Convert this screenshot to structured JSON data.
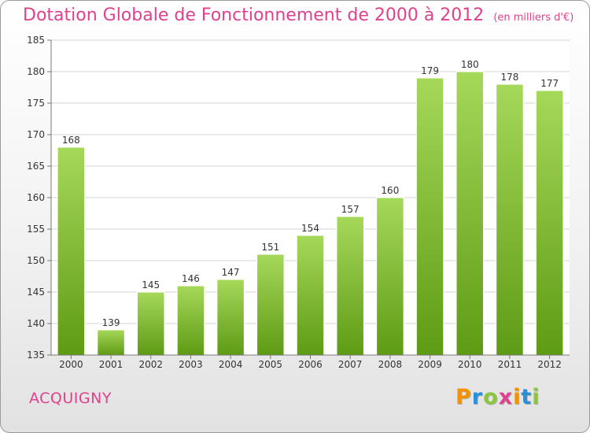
{
  "header": {
    "title": "Dotation Globale de Fonctionnement de 2000 à 2012",
    "unit": "(en milliers d'€)"
  },
  "commune": "ACQUIGNY",
  "logo": {
    "letters": [
      "P",
      "r",
      "o",
      "x",
      "i",
      "t",
      "i"
    ],
    "colors": [
      "#f39200",
      "#2a8fd6",
      "#8cc63f",
      "#e0418c",
      "#f39200",
      "#2a8fd6",
      "#8cc63f"
    ]
  },
  "colors": {
    "bar_light": "#a6d85a",
    "bar_dark": "#5e9b14",
    "accent": "#e0418c"
  },
  "chart_data": {
    "type": "bar",
    "categories": [
      "2000",
      "2001",
      "2002",
      "2003",
      "2004",
      "2005",
      "2006",
      "2007",
      "2008",
      "2009",
      "2010",
      "2011",
      "2012"
    ],
    "values": [
      168,
      139,
      145,
      146,
      147,
      151,
      154,
      157,
      160,
      179,
      180,
      178,
      177
    ],
    "ylim": [
      135,
      185
    ],
    "yticks": [
      135,
      140,
      145,
      150,
      155,
      160,
      165,
      170,
      175,
      180,
      185
    ],
    "grid": true
  }
}
